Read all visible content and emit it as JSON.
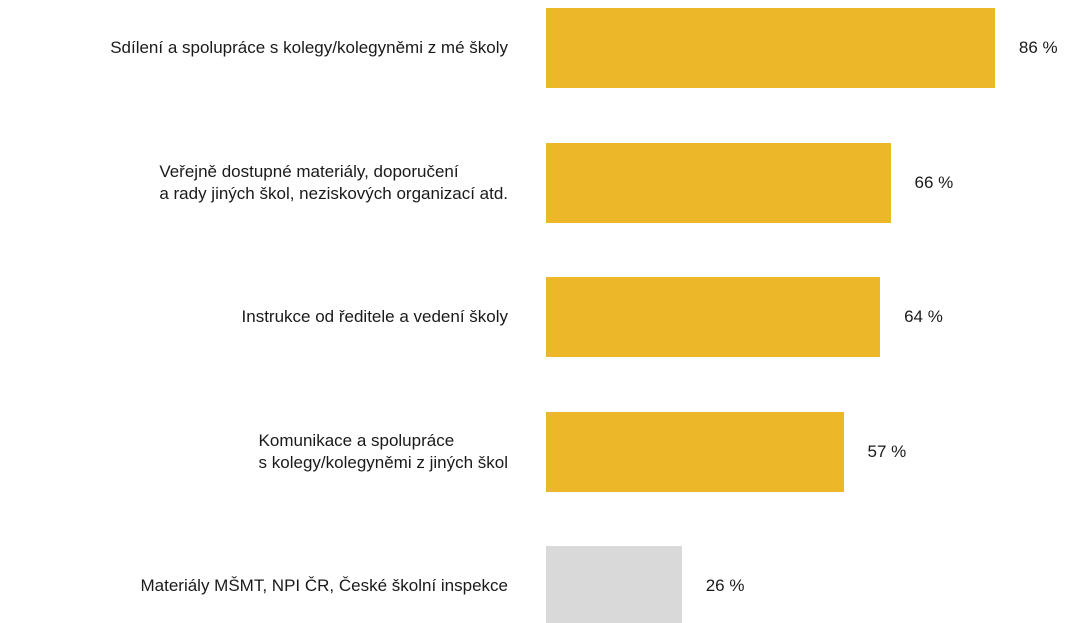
{
  "chart_data": {
    "type": "bar",
    "orientation": "horizontal",
    "categories": [
      "Sdílení a spolupráce s kolegy/kolegyněmi z mé školy",
      "Veřejně dostupné materiály, doporučení\na rady jiných škol, neziskových organizací atd.",
      "Instrukce od ředitele a vedení školy",
      "Komunikace a spolupráce\ns kolegy/kolegyněmi z jiných škol",
      "Materiály MŠMT, NPI ČR, České školní inspekce"
    ],
    "values": [
      86,
      66,
      64,
      57,
      26
    ],
    "value_labels": [
      "86 %",
      "66 %",
      "64 %",
      "57 %",
      "26 %"
    ],
    "colors": [
      "#ecb82a",
      "#ecb82a",
      "#ecb82a",
      "#ecb82a",
      "#d9d9d9"
    ]
  }
}
